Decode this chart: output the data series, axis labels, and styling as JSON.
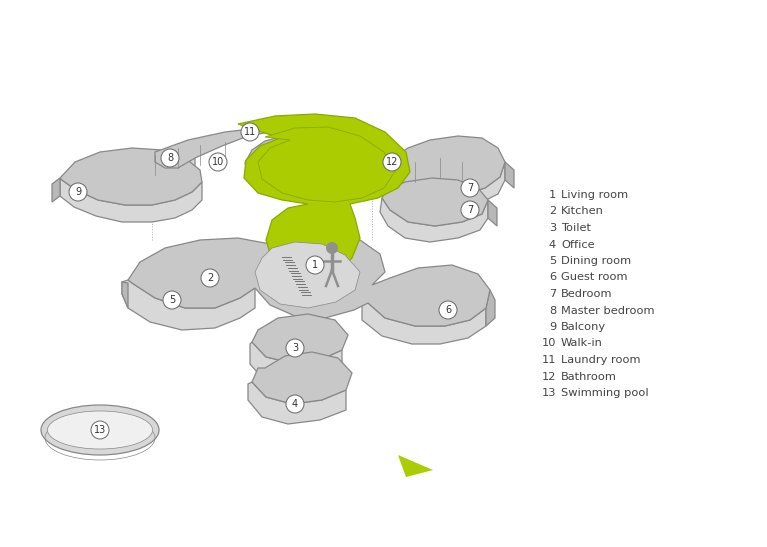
{
  "background_color": "#ffffff",
  "gray_top": "#c8c8c8",
  "gray_side": "#d8d8d8",
  "gray_dark_side": "#b8b8b8",
  "green_fill": "#aacc00",
  "green_stroke": "#88aa00",
  "white_fill": "#f0f0f0",
  "stroke_color": "#888888",
  "stroke_lw": 0.9,
  "legend": [
    [
      1,
      "Living room"
    ],
    [
      2,
      "Kitchen"
    ],
    [
      3,
      "Toilet"
    ],
    [
      4,
      "Office"
    ],
    [
      5,
      "Dining room"
    ],
    [
      6,
      "Guest room"
    ],
    [
      7,
      "Bedroom"
    ],
    [
      8,
      "Master bedroom"
    ],
    [
      9,
      "Balcony"
    ],
    [
      10,
      "Walk-in"
    ],
    [
      11,
      "Laundry room"
    ],
    [
      12,
      "Bathroom"
    ],
    [
      13,
      "Swimming pool"
    ]
  ]
}
